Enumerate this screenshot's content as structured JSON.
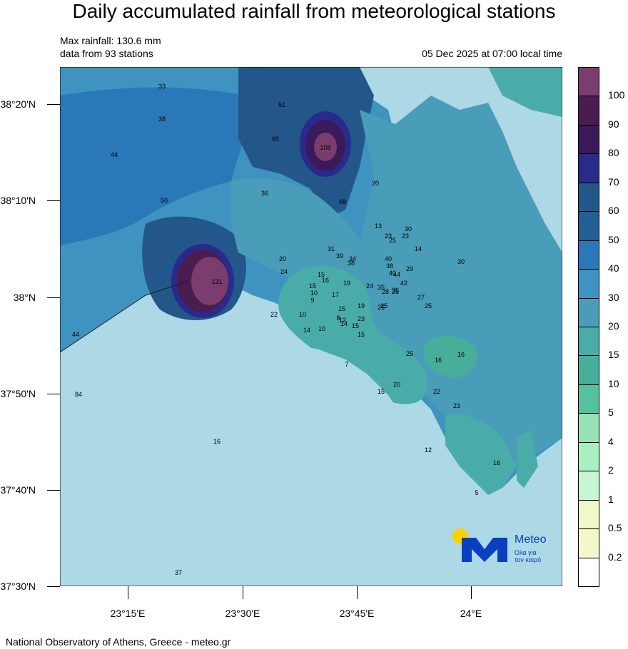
{
  "title": "Daily accumulated rainfall from meteorological stations",
  "max_rainfall": "Max rainfall: 130.6 mm",
  "stations_text": "data from 93 stations",
  "datetime": "05 Dec 2025 at 07:00 local time",
  "footer": "National Observatory of Athens, Greece - meteo.gr",
  "lat_labels": [
    "38°20'N",
    "38°10'N",
    "38°N",
    "37°50'N",
    "37°40'N",
    "37°30'N"
  ],
  "lon_labels": [
    "23°15'E",
    "23°30'E",
    "23°45'E",
    "24°E"
  ],
  "colorbar": {
    "labels": [
      "100",
      "90",
      "80",
      "70",
      "60",
      "50",
      "40",
      "30",
      "20",
      "15",
      "10",
      "5",
      "4",
      "2",
      "1",
      "0.5",
      "0.2"
    ],
    "colors": [
      "#7b3c6e",
      "#4a1c4f",
      "#3a1a5a",
      "#2a2a8c",
      "#23578a",
      "#235f94",
      "#2a78b8",
      "#3f93c0",
      "#4a9db8",
      "#4aaca8",
      "#47ae99",
      "#55c1a1",
      "#95e3b7",
      "#a9f0c1",
      "#c6f7d2",
      "#eef8c8",
      "#f4f7cc",
      "#ffffff"
    ]
  },
  "logo": {
    "name": "Meteo",
    "tagline_1": "Όλα για",
    "tagline_2": "τον καιρό"
  },
  "station_values": [
    "33",
    "38",
    "51",
    "65",
    "108",
    "44",
    "50",
    "36",
    "68",
    "20",
    "13",
    "23",
    "30",
    "23",
    "25",
    "14",
    "30",
    "20",
    "31",
    "39",
    "34",
    "38",
    "40",
    "38",
    "29",
    "24",
    "131",
    "15",
    "16",
    "19",
    "24",
    "35",
    "40",
    "44",
    "42",
    "15",
    "10",
    "9",
    "17",
    "28",
    "26",
    "36",
    "27",
    "25",
    "25",
    "22",
    "10",
    "15",
    "19",
    "25",
    "8",
    "12",
    "14",
    "15",
    "23",
    "14",
    "10",
    "15",
    "44",
    "25",
    "16",
    "16",
    "7",
    "20",
    "15",
    "22",
    "23",
    "84",
    "16",
    "12",
    "16",
    "5",
    "37"
  ]
}
